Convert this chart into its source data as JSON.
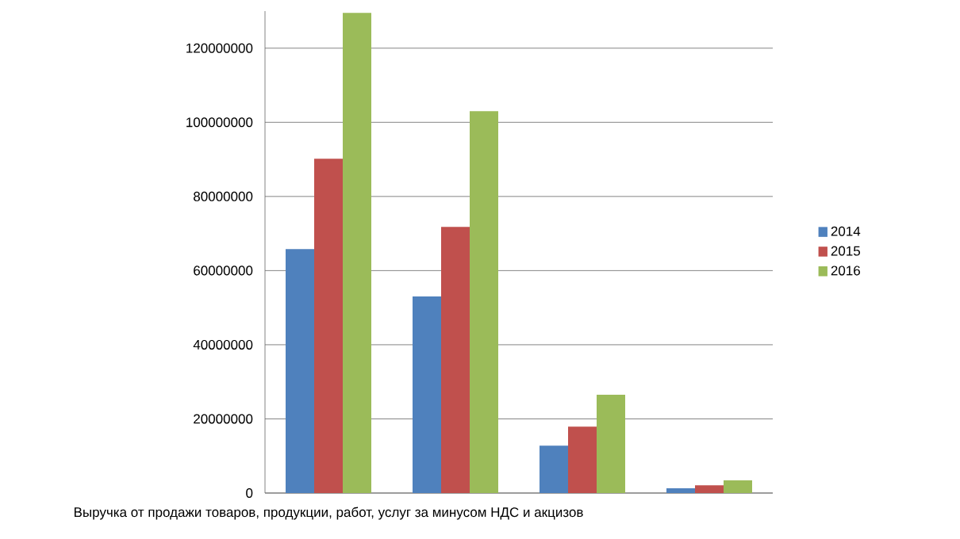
{
  "chart_data": {
    "type": "bar",
    "categories": [
      "Выручка от продажи товаров, продукции, работ, услуг за минусом НДС и акцизов",
      null,
      null,
      null
    ],
    "series": [
      {
        "name": "2014",
        "color": "#4f81bd",
        "values": [
          65800000,
          53000000,
          12800000,
          1300000
        ]
      },
      {
        "name": "2015",
        "color": "#c0504d",
        "values": [
          90200000,
          71800000,
          17900000,
          2100000
        ]
      },
      {
        "name": "2016",
        "color": "#9bbb59",
        "values": [
          129500000,
          103000000,
          26500000,
          3400000
        ]
      }
    ],
    "ylim": [
      0,
      130000000
    ],
    "yticks": [
      0,
      20000000,
      40000000,
      60000000,
      80000000,
      100000000,
      120000000
    ],
    "grid": "y",
    "legend": "right"
  }
}
